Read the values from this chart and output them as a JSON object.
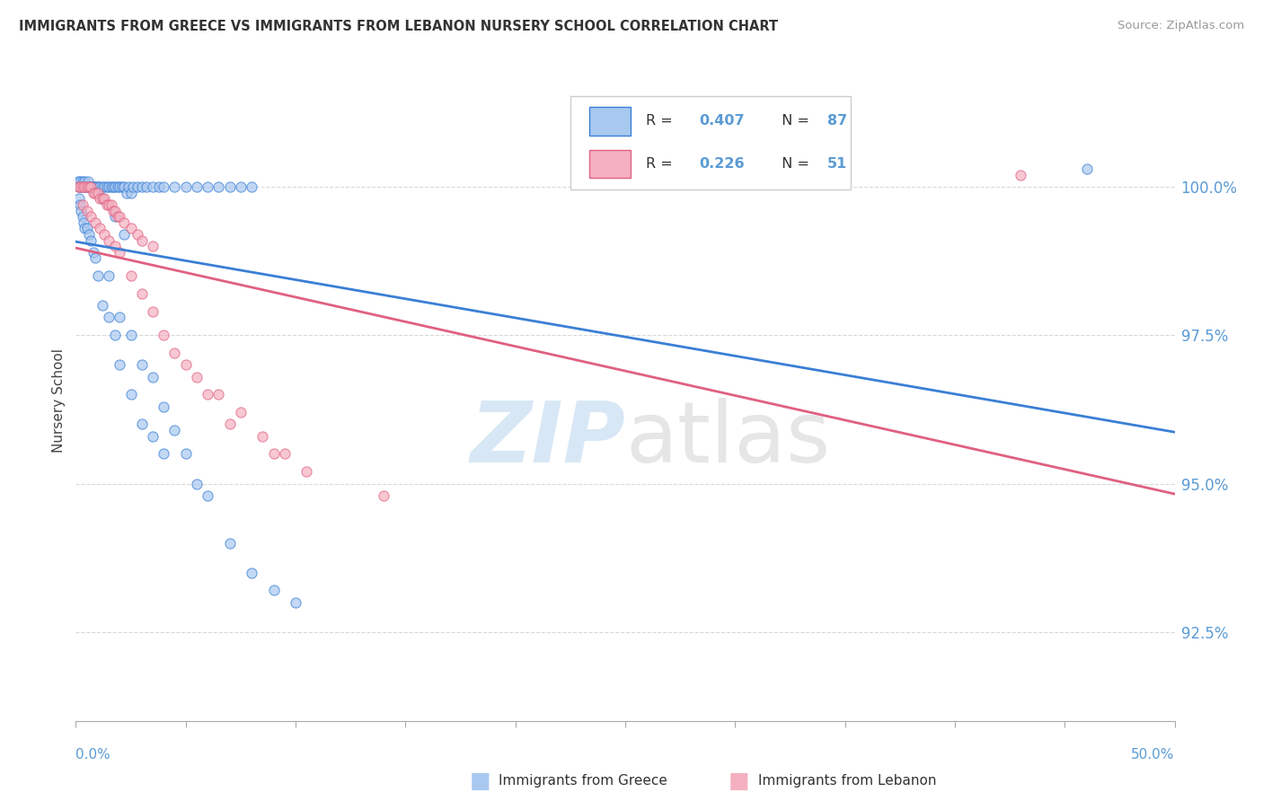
{
  "title": "IMMIGRANTS FROM GREECE VS IMMIGRANTS FROM LEBANON NURSERY SCHOOL CORRELATION CHART",
  "source": "Source: ZipAtlas.com",
  "ylabel": "Nursery School",
  "ytick_labels": [
    "100.0%",
    "97.5%",
    "95.0%",
    "92.5%"
  ],
  "ytick_values": [
    100.0,
    97.5,
    95.0,
    92.5
  ],
  "xmin": 0.0,
  "xmax": 50.0,
  "ymin": 91.0,
  "ymax": 101.8,
  "legend_r1": "0.407",
  "legend_n1": "87",
  "legend_r2": "0.226",
  "legend_n2": "51",
  "color_greece": "#a8c8f0",
  "color_lebanon": "#f4b0c0",
  "color_line_greece": "#3a7fd5",
  "color_line_lebanon": "#e06080",
  "color_axis_labels": "#5b9bd5",
  "color_title": "#333333",
  "color_source": "#999999",
  "color_grid": "#d8d8d8",
  "greece_x": [
    0.1,
    0.15,
    0.2,
    0.25,
    0.3,
    0.35,
    0.4,
    0.45,
    0.5,
    0.55,
    0.6,
    0.65,
    0.7,
    0.75,
    0.8,
    0.85,
    0.9,
    0.95,
    1.0,
    1.1,
    1.2,
    1.3,
    1.4,
    1.5,
    1.6,
    1.7,
    1.8,
    1.9,
    2.0,
    2.1,
    2.2,
    2.3,
    2.4,
    2.5,
    2.6,
    2.8,
    3.0,
    3.2,
    3.5,
    3.8,
    4.0,
    4.5,
    5.0,
    5.5,
    6.0,
    6.5,
    7.0,
    7.5,
    8.0,
    0.15,
    0.2,
    0.25,
    0.3,
    0.35,
    0.4,
    0.5,
    0.6,
    0.7,
    0.8,
    0.9,
    1.0,
    1.2,
    1.5,
    1.8,
    2.0,
    2.5,
    3.0,
    3.5,
    4.0,
    1.5,
    2.0,
    2.5,
    3.0,
    3.5,
    4.0,
    4.5,
    5.0,
    5.5,
    6.0,
    7.0,
    8.0,
    9.0,
    10.0,
    46.0,
    1.2,
    1.8,
    2.2
  ],
  "greece_y": [
    100.1,
    100.0,
    100.1,
    100.0,
    100.1,
    100.0,
    100.1,
    100.0,
    100.0,
    100.1,
    100.0,
    100.0,
    100.0,
    100.0,
    100.0,
    100.0,
    100.0,
    100.0,
    100.0,
    100.0,
    100.0,
    100.0,
    100.0,
    100.0,
    100.0,
    100.0,
    100.0,
    100.0,
    100.0,
    100.0,
    100.0,
    99.9,
    100.0,
    99.9,
    100.0,
    100.0,
    100.0,
    100.0,
    100.0,
    100.0,
    100.0,
    100.0,
    100.0,
    100.0,
    100.0,
    100.0,
    100.0,
    100.0,
    100.0,
    99.8,
    99.7,
    99.6,
    99.5,
    99.4,
    99.3,
    99.3,
    99.2,
    99.1,
    98.9,
    98.8,
    98.5,
    98.0,
    97.8,
    97.5,
    97.0,
    96.5,
    96.0,
    95.8,
    95.5,
    98.5,
    97.8,
    97.5,
    97.0,
    96.8,
    96.3,
    95.9,
    95.5,
    95.0,
    94.8,
    94.0,
    93.5,
    93.2,
    93.0,
    100.3,
    99.8,
    99.5,
    99.2
  ],
  "lebanon_x": [
    0.1,
    0.2,
    0.3,
    0.4,
    0.5,
    0.6,
    0.7,
    0.8,
    0.9,
    1.0,
    1.1,
    1.2,
    1.3,
    1.4,
    1.5,
    1.6,
    1.7,
    1.8,
    1.9,
    2.0,
    2.2,
    2.5,
    2.8,
    3.0,
    3.5,
    0.3,
    0.5,
    0.7,
    0.9,
    1.1,
    1.3,
    1.5,
    1.8,
    2.0,
    2.5,
    3.0,
    3.5,
    4.0,
    5.0,
    6.0,
    7.0,
    9.0,
    14.0,
    43.0,
    4.5,
    5.5,
    6.5,
    7.5,
    8.5,
    9.5,
    10.5
  ],
  "lebanon_y": [
    100.0,
    100.0,
    100.0,
    100.0,
    100.0,
    100.0,
    100.0,
    99.9,
    99.9,
    99.9,
    99.8,
    99.8,
    99.8,
    99.7,
    99.7,
    99.7,
    99.6,
    99.6,
    99.5,
    99.5,
    99.4,
    99.3,
    99.2,
    99.1,
    99.0,
    99.7,
    99.6,
    99.5,
    99.4,
    99.3,
    99.2,
    99.1,
    99.0,
    98.9,
    98.5,
    98.2,
    97.9,
    97.5,
    97.0,
    96.5,
    96.0,
    95.5,
    94.8,
    100.2,
    97.2,
    96.8,
    96.5,
    96.2,
    95.8,
    95.5,
    95.2
  ]
}
